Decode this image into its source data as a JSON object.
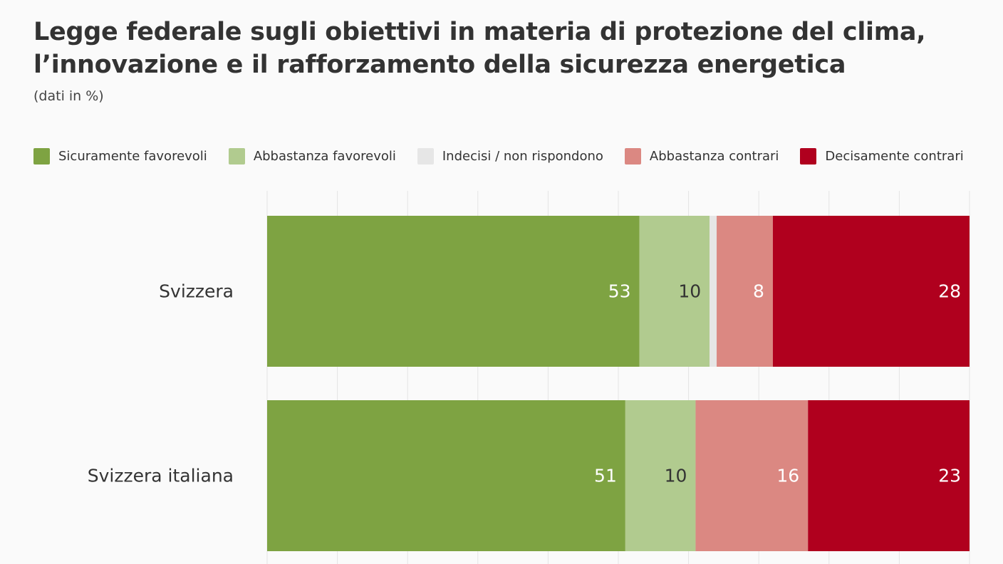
{
  "title": "Legge federale sugli obiettivi in materia di protezione del clima, l’innovazione e il rafforzamento della sicurezza energetica",
  "subtitle": "(dati in %)",
  "chart_data": {
    "type": "bar",
    "orientation": "horizontal",
    "stacked": true,
    "categories": [
      "Svizzera",
      "Svizzera italiana"
    ],
    "series": [
      {
        "name": "Sicuramente favorevoli",
        "color": "#7ea342",
        "values": [
          53,
          51
        ],
        "label_color": "#ffffff"
      },
      {
        "name": "Abbastanza favorevoli",
        "color": "#b1cb8f",
        "values": [
          10,
          10
        ],
        "label_color": "#333333"
      },
      {
        "name": "Indecisi / non rispondono",
        "color": "#e6e6e6",
        "values": [
          1,
          0
        ],
        "label_color": "#333333"
      },
      {
        "name": "Abbastanza contrari",
        "color": "#db8882",
        "values": [
          8,
          16
        ],
        "label_color": "#ffffff"
      },
      {
        "name": "Decisamente contrari",
        "color": "#b0001e",
        "values": [
          28,
          23
        ],
        "label_color": "#ffffff"
      }
    ],
    "xlim": [
      0,
      100
    ],
    "grid": true,
    "legend": "top",
    "value_labels_min": 2
  }
}
